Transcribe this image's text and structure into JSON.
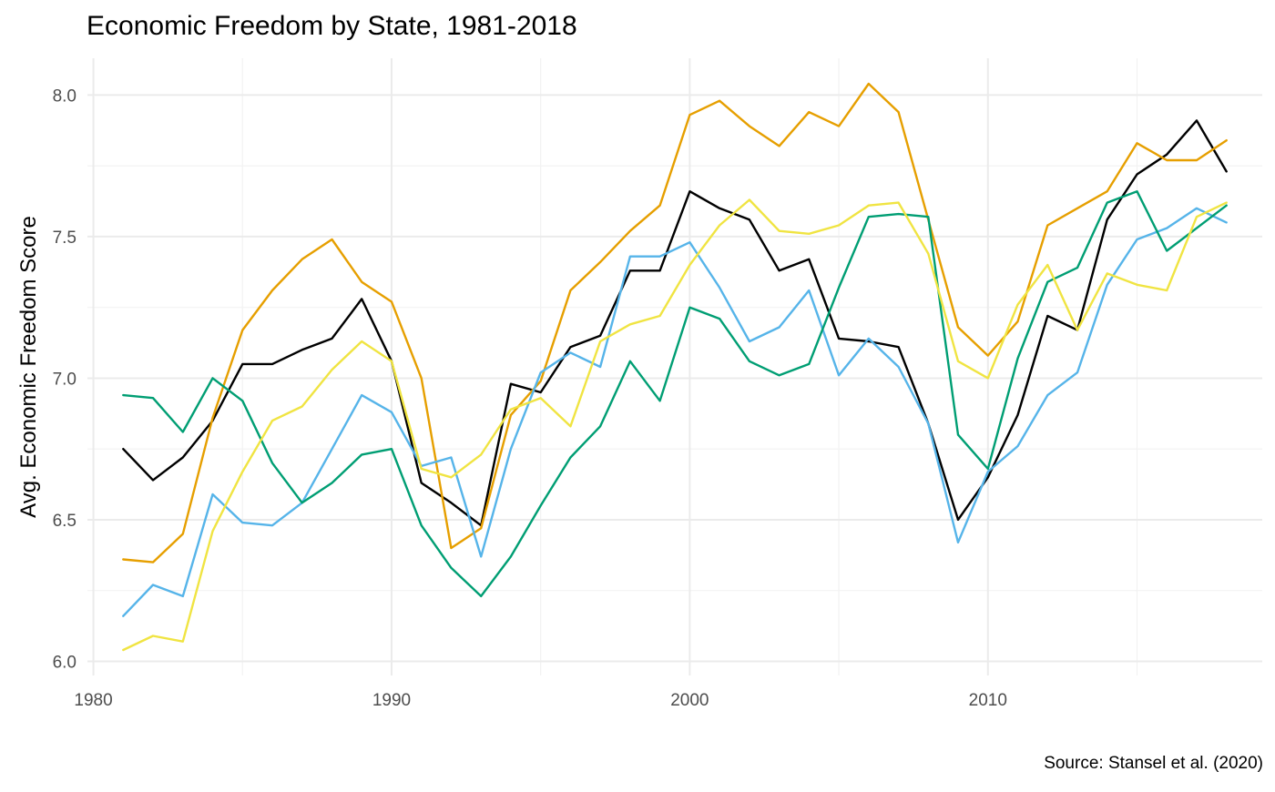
{
  "chart_data": {
    "type": "line",
    "title": "Economic Freedom by State, 1981-2018",
    "xlabel": "",
    "ylabel": "Avg. Economic Freedom Score",
    "caption": "Source: Stansel et al. (2020)",
    "xlim": [
      1979.8,
      2019.2
    ],
    "ylim": [
      5.95,
      8.13
    ],
    "x_ticks": [
      1980,
      1990,
      2000,
      2010
    ],
    "y_ticks": [
      6.0,
      6.5,
      7.0,
      7.5,
      8.0
    ],
    "x_tick_labels": [
      "1980",
      "1990",
      "2000",
      "2010"
    ],
    "y_tick_labels": [
      "6.0",
      "6.5",
      "7.0",
      "7.5",
      "8.0"
    ],
    "grid": true,
    "legend": "none",
    "x": [
      1981,
      1982,
      1983,
      1984,
      1985,
      1986,
      1987,
      1988,
      1989,
      1990,
      1991,
      1992,
      1993,
      1994,
      1995,
      1996,
      1997,
      1998,
      1999,
      2000,
      2001,
      2002,
      2003,
      2004,
      2005,
      2006,
      2007,
      2008,
      2009,
      2010,
      2011,
      2012,
      2013,
      2014,
      2015,
      2016,
      2017,
      2018
    ],
    "series": [
      {
        "color": "#000000",
        "values": [
          6.75,
          6.64,
          6.72,
          6.85,
          7.05,
          7.05,
          7.1,
          7.14,
          7.28,
          7.06,
          6.63,
          6.56,
          6.48,
          6.98,
          6.95,
          7.11,
          7.15,
          7.38,
          7.38,
          7.66,
          7.6,
          7.56,
          7.38,
          7.42,
          7.14,
          7.13,
          7.11,
          6.84,
          6.5,
          6.65,
          6.87,
          7.22,
          7.17,
          7.56,
          7.72,
          7.79,
          7.91,
          7.73
        ]
      },
      {
        "color": "#E69F00",
        "values": [
          6.36,
          6.35,
          6.45,
          6.86,
          7.17,
          7.31,
          7.42,
          7.49,
          7.34,
          7.27,
          7.0,
          6.4,
          6.47,
          6.87,
          6.99,
          7.31,
          7.41,
          7.52,
          7.61,
          7.93,
          7.98,
          7.89,
          7.82,
          7.94,
          7.89,
          8.04,
          7.94,
          7.56,
          7.18,
          7.08,
          7.2,
          7.54,
          7.6,
          7.66,
          7.83,
          7.77,
          7.77,
          7.84
        ]
      },
      {
        "color": "#56B4E9",
        "values": [
          6.16,
          6.27,
          6.23,
          6.59,
          6.49,
          6.48,
          6.56,
          6.75,
          6.94,
          6.88,
          6.69,
          6.72,
          6.37,
          6.75,
          7.02,
          7.09,
          7.04,
          7.43,
          7.43,
          7.48,
          7.32,
          7.13,
          7.18,
          7.31,
          7.01,
          7.14,
          7.04,
          6.84,
          6.42,
          6.67,
          6.76,
          6.94,
          7.02,
          7.33,
          7.49,
          7.53,
          7.6,
          7.55
        ]
      },
      {
        "color": "#009E73",
        "values": [
          6.94,
          6.93,
          6.81,
          7.0,
          6.92,
          6.7,
          6.56,
          6.63,
          6.73,
          6.75,
          6.48,
          6.33,
          6.23,
          6.37,
          6.55,
          6.72,
          6.83,
          7.06,
          6.92,
          7.25,
          7.21,
          7.06,
          7.01,
          7.05,
          7.32,
          7.57,
          7.58,
          7.57,
          6.8,
          6.68,
          7.07,
          7.34,
          7.39,
          7.62,
          7.66,
          7.45,
          7.53,
          7.61
        ]
      },
      {
        "color": "#F0E442",
        "values": [
          6.04,
          6.09,
          6.07,
          6.46,
          6.67,
          6.85,
          6.9,
          7.03,
          7.13,
          7.06,
          6.68,
          6.65,
          6.73,
          6.89,
          6.93,
          6.83,
          7.13,
          7.19,
          7.22,
          7.4,
          7.54,
          7.63,
          7.52,
          7.51,
          7.54,
          7.61,
          7.62,
          7.44,
          7.06,
          7.0,
          7.26,
          7.4,
          7.17,
          7.37,
          7.33,
          7.31,
          7.57,
          7.62
        ]
      }
    ]
  }
}
